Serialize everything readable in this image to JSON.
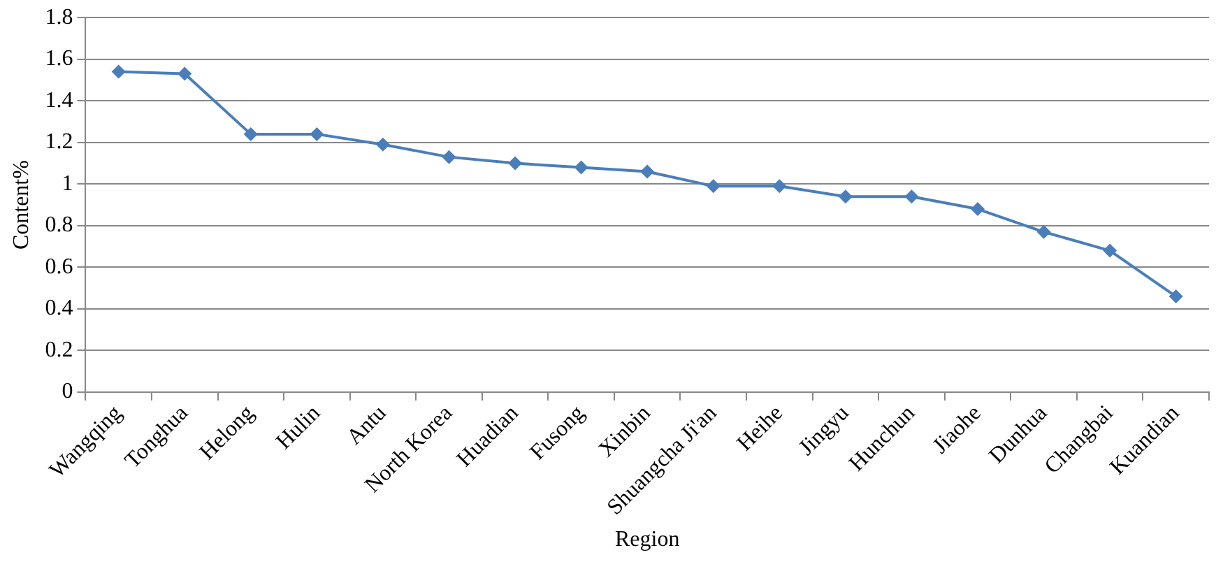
{
  "chart_data": {
    "type": "line",
    "xlabel": "Region",
    "ylabel": "Content%",
    "categories": [
      "Wangqing",
      "Tonghua",
      "Helong",
      "Hulin",
      "Antu",
      "North Korea",
      "Huadian",
      "Fusong",
      "Xinbin",
      "Shuangcha Ji'an",
      "Heihe",
      "Jingyu",
      "Hunchun",
      "Jiaohe",
      "Dunhua",
      "Changbai",
      "Kuandian"
    ],
    "series": [
      {
        "color": "#4a7ebb",
        "values": [
          1.54,
          1.53,
          1.24,
          1.24,
          1.19,
          1.13,
          1.1,
          1.08,
          1.06,
          0.99,
          0.99,
          0.94,
          0.94,
          0.88,
          0.77,
          0.68,
          0.46
        ]
      }
    ],
    "ylim": [
      0,
      1.8
    ],
    "yticks": [
      0,
      0.2,
      0.4,
      0.6,
      0.8,
      1,
      1.2,
      1.4,
      1.6,
      1.8
    ],
    "grid": "y",
    "legend": false,
    "marker": "diamond",
    "line_style": "solid"
  }
}
